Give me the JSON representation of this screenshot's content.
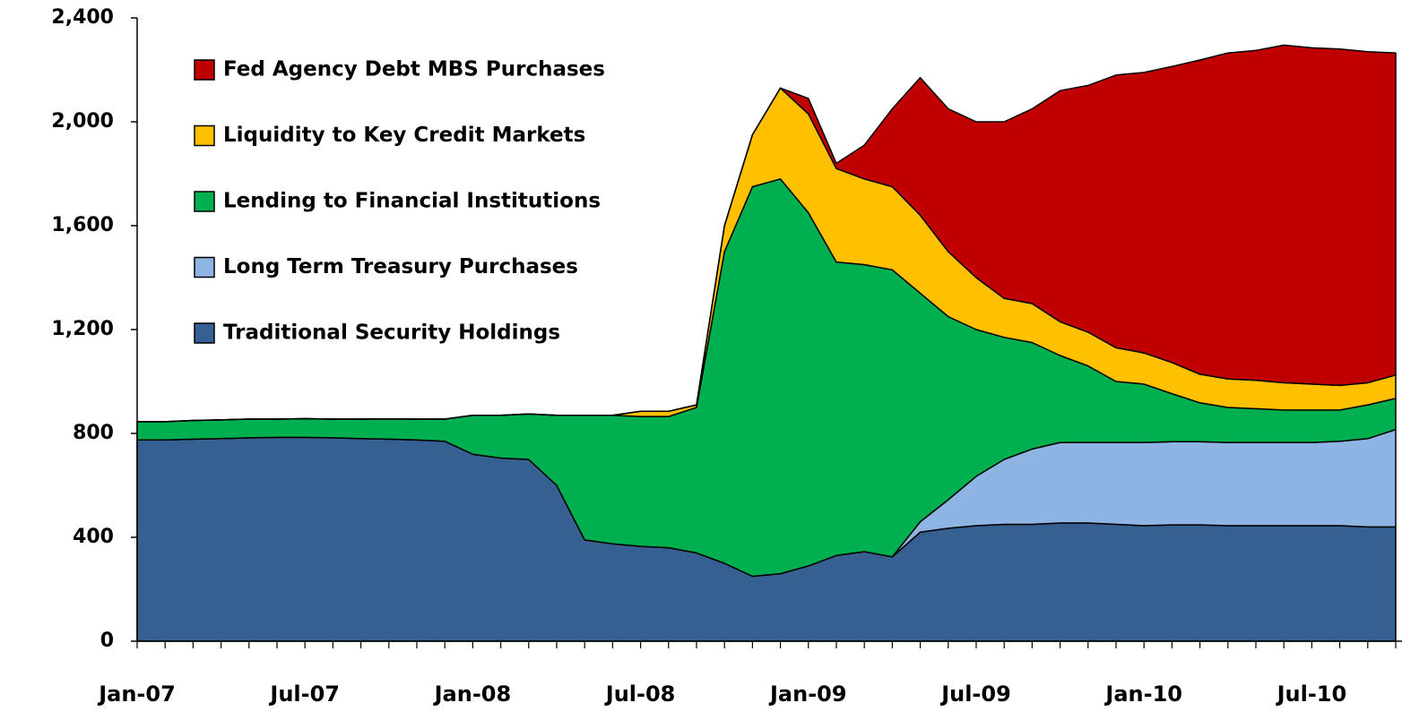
{
  "chart_data": {
    "type": "stacked_area",
    "categories": [
      "Jan-07",
      null,
      null,
      null,
      null,
      null,
      "Jul-07",
      null,
      null,
      null,
      null,
      null,
      "Jan-08",
      null,
      null,
      null,
      null,
      null,
      "Jul-08",
      null,
      null,
      null,
      null,
      null,
      "Jan-09",
      null,
      null,
      null,
      null,
      null,
      "Jul-09",
      null,
      null,
      null,
      null,
      null,
      "Jan-10",
      null,
      null,
      null,
      null,
      null,
      "Jul-10",
      null,
      null,
      null
    ],
    "series": [
      {
        "name": "Traditional Security Holdings",
        "color": "#376092",
        "values": [
          775,
          775,
          778,
          780,
          783,
          785,
          785,
          783,
          780,
          778,
          775,
          770,
          720,
          705,
          700,
          600,
          390,
          375,
          365,
          360,
          340,
          300,
          250,
          260,
          290,
          330,
          345,
          325,
          420,
          435,
          445,
          450,
          450,
          455,
          455,
          450,
          445,
          448,
          448,
          445,
          445,
          445,
          445,
          445,
          440,
          440
        ]
      },
      {
        "name": "Long Term Treasury Purchases",
        "color": "#8EB4E3",
        "values": [
          0,
          0,
          0,
          0,
          0,
          0,
          0,
          0,
          0,
          0,
          0,
          0,
          0,
          0,
          0,
          0,
          0,
          0,
          0,
          0,
          0,
          0,
          0,
          0,
          0,
          0,
          0,
          0,
          40,
          110,
          190,
          250,
          290,
          310,
          310,
          315,
          320,
          320,
          320,
          320,
          320,
          320,
          320,
          325,
          340,
          375
        ]
      },
      {
        "name": "Lending to Financial Institutions",
        "color": "#00B050",
        "values": [
          70,
          70,
          72,
          72,
          72,
          70,
          72,
          72,
          75,
          78,
          80,
          85,
          150,
          165,
          175,
          270,
          480,
          495,
          500,
          505,
          560,
          1200,
          1500,
          1520,
          1360,
          1130,
          1105,
          1105,
          880,
          705,
          565,
          470,
          410,
          335,
          295,
          235,
          225,
          185,
          150,
          135,
          130,
          125,
          125,
          120,
          130,
          120
        ]
      },
      {
        "name": "Liquidity to Key Credit Markets",
        "color": "#FFC000",
        "values": [
          0,
          0,
          0,
          0,
          0,
          0,
          0,
          0,
          0,
          0,
          0,
          0,
          0,
          0,
          0,
          0,
          0,
          0,
          20,
          20,
          10,
          100,
          200,
          350,
          380,
          360,
          330,
          320,
          300,
          250,
          200,
          150,
          150,
          130,
          130,
          130,
          120,
          120,
          110,
          110,
          110,
          105,
          100,
          95,
          85,
          90
        ]
      },
      {
        "name": "Fed Agency Debt MBS Purchases",
        "color": "#C00000",
        "values": [
          0,
          0,
          0,
          0,
          0,
          0,
          0,
          0,
          0,
          0,
          0,
          0,
          0,
          0,
          0,
          0,
          0,
          0,
          0,
          0,
          0,
          0,
          0,
          0,
          60,
          20,
          130,
          300,
          530,
          550,
          600,
          680,
          750,
          890,
          950,
          1050,
          1080,
          1140,
          1210,
          1255,
          1270,
          1300,
          1295,
          1295,
          1275,
          1240
        ]
      }
    ],
    "ylim": [
      0,
      2400
    ],
    "yticks": [
      0,
      400,
      800,
      {
        "value": 1200,
        "label": "1,200"
      },
      {
        "value": 1600,
        "label": "1,600"
      },
      {
        "value": 2000,
        "label": "2,000"
      },
      {
        "value": 2400,
        "label": "2,400"
      }
    ],
    "legend": "upper left"
  }
}
